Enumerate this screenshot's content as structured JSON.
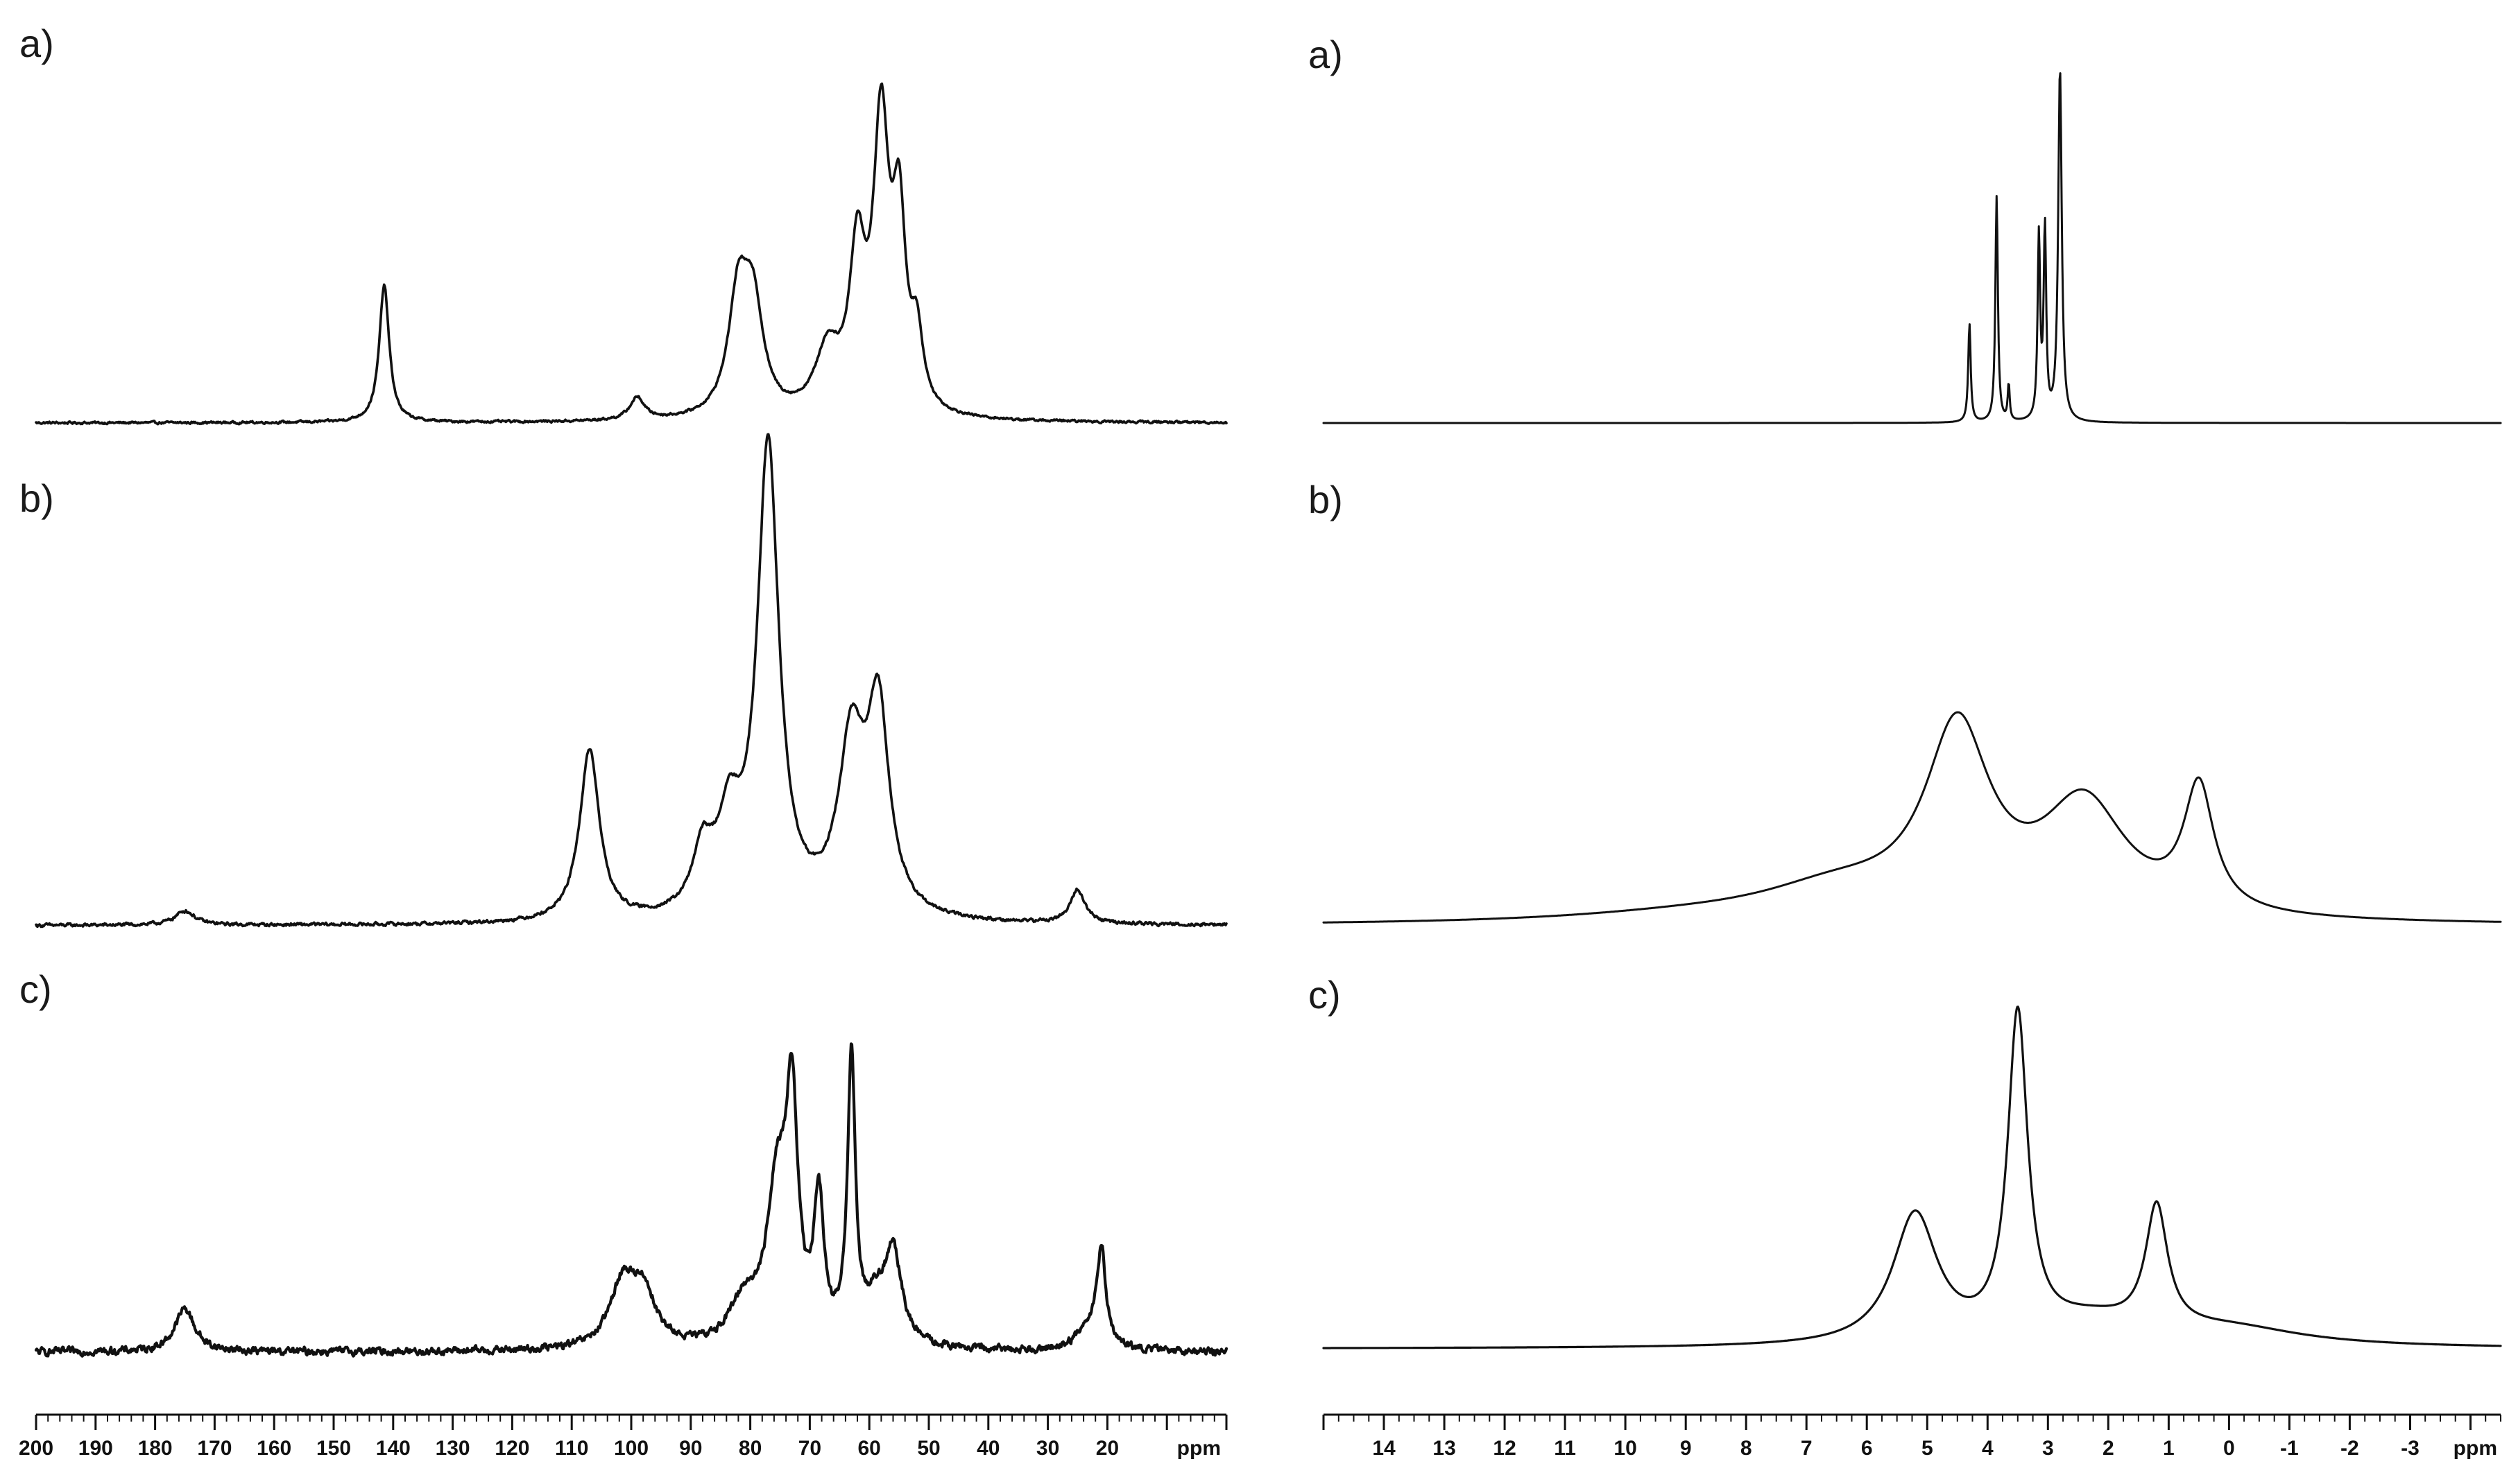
{
  "chart_data": [
    {
      "type": "line",
      "panel": "a)",
      "column": "left",
      "xlim": [
        200,
        0
      ],
      "series": [
        {
          "peaks": [
            [
              141.5,
              0.4,
              1.0
            ],
            [
              99.0,
              0.065,
              1.5
            ],
            [
              82.0,
              0.34,
              2.0
            ],
            [
              79.5,
              0.3,
              2.0
            ],
            [
              67.0,
              0.18,
              2.5
            ],
            [
              62.0,
              0.44,
              1.6
            ],
            [
              58.0,
              0.82,
              1.6
            ],
            [
              55.0,
              0.52,
              1.3
            ],
            [
              52.0,
              0.2,
              1.2
            ]
          ],
          "noise": 0.006
        }
      ]
    },
    {
      "type": "line",
      "panel": "b)",
      "column": "left",
      "xlim": [
        200,
        0
      ],
      "series": [
        {
          "peaks": [
            [
              175.0,
              0.03,
              2.0
            ],
            [
              107.0,
              0.36,
              2.0
            ],
            [
              88.0,
              0.12,
              2.0
            ],
            [
              83.5,
              0.18,
              2.5
            ],
            [
              77.0,
              0.98,
              2.2
            ],
            [
              63.0,
              0.35,
              2.6
            ],
            [
              58.5,
              0.42,
              2.2
            ],
            [
              25.0,
              0.07,
              1.5
            ]
          ],
          "noise": 0.006
        }
      ]
    },
    {
      "type": "line",
      "panel": "c)",
      "column": "left",
      "xlim": [
        200,
        0
      ],
      "series": [
        {
          "peaks": [
            [
              175.0,
              0.12,
              2.0
            ],
            [
              101.5,
              0.17,
              2.5
            ],
            [
              98.0,
              0.15,
              2.5
            ],
            [
              81.0,
              0.12,
              3.0
            ],
            [
              75.5,
              0.42,
              2.0
            ],
            [
              73.0,
              0.62,
              1.2
            ],
            [
              68.5,
              0.38,
              1.0
            ],
            [
              63.0,
              0.78,
              0.8
            ],
            [
              59.0,
              0.1,
              2.0
            ],
            [
              56.0,
              0.25,
              1.8
            ],
            [
              21.0,
              0.26,
              0.9
            ],
            [
              23.0,
              0.06,
              2.5
            ]
          ],
          "noise": 0.018
        }
      ]
    },
    {
      "type": "line",
      "panel": "a)",
      "column": "right",
      "xlim": [
        15,
        -4.5
      ],
      "series": [
        {
          "peaks": [
            [
              4.3,
              0.27,
              0.025
            ],
            [
              3.85,
              0.62,
              0.025
            ],
            [
              3.65,
              0.1,
              0.02
            ],
            [
              3.15,
              0.5,
              0.025
            ],
            [
              3.05,
              0.52,
              0.025
            ],
            [
              2.8,
              0.97,
              0.035
            ]
          ],
          "noise": 0.0
        }
      ]
    },
    {
      "type": "line",
      "panel": "b)",
      "column": "right",
      "xlim": [
        15,
        -4.5
      ],
      "series": [
        {
          "peaks": [
            [
              4.5,
              0.54,
              0.65
            ],
            [
              2.4,
              0.33,
              0.85
            ],
            [
              0.5,
              0.36,
              0.3
            ],
            [
              6.5,
              0.09,
              1.6
            ],
            [
              9.0,
              0.02,
              2.5
            ]
          ],
          "noise": 0.0
        }
      ]
    },
    {
      "type": "line",
      "panel": "c)",
      "column": "right",
      "xlim": [
        15,
        -4.5
      ],
      "series": [
        {
          "peaks": [
            [
              5.2,
              0.36,
              0.45
            ],
            [
              3.5,
              0.89,
              0.2
            ],
            [
              1.2,
              0.34,
              0.22
            ],
            [
              2.3,
              0.06,
              1.0
            ],
            [
              0.0,
              0.05,
              1.5
            ]
          ],
          "noise": 0.0
        }
      ]
    }
  ],
  "panels": {
    "left_a": "a)",
    "left_b": "b)",
    "left_c": "c)",
    "right_a": "a)",
    "right_b": "b)",
    "right_c": "c)"
  },
  "axes": {
    "left": {
      "ticks": [
        200,
        190,
        180,
        170,
        160,
        150,
        140,
        130,
        120,
        110,
        100,
        90,
        80,
        70,
        60,
        50,
        40,
        30,
        20
      ],
      "unit": "ppm"
    },
    "right": {
      "ticks": [
        14,
        13,
        12,
        11,
        10,
        9,
        8,
        7,
        6,
        5,
        4,
        3,
        2,
        1,
        0,
        -1,
        -2,
        -3
      ],
      "unit": "ppm"
    }
  }
}
